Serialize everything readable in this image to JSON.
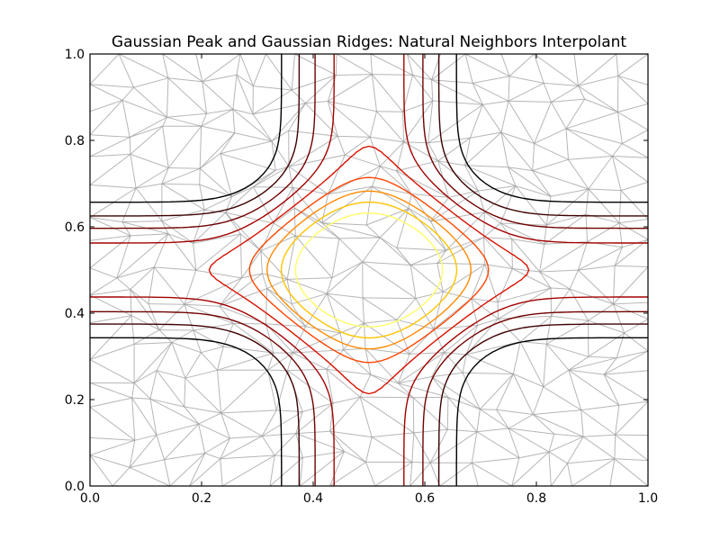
{
  "chart_data": {
    "type": "contour",
    "title": "Gaussian Peak and Gaussian Ridges: Natural Neighbors Interpolant",
    "xlabel": "",
    "ylabel": "",
    "xlim": [
      0.0,
      1.0
    ],
    "ylim": [
      0.0,
      1.0
    ],
    "x_ticks": [
      "0.0",
      "0.2",
      "0.4",
      "0.6",
      "0.8",
      "1.0"
    ],
    "y_ticks": [
      "0.0",
      "0.2",
      "0.4",
      "0.6",
      "0.8",
      "1.0"
    ],
    "peak_center": [
      0.5,
      0.5
    ],
    "colormap": "hot",
    "contour_levels": [
      {
        "level": 1,
        "color": "#000000"
      },
      {
        "level": 2,
        "color": "#3d0000"
      },
      {
        "level": 3,
        "color": "#700000"
      },
      {
        "level": 4,
        "color": "#a30000"
      },
      {
        "level": 5,
        "color": "#d71000"
      },
      {
        "level": 6,
        "color": "#ff4500"
      },
      {
        "level": 7,
        "color": "#ff8a00"
      },
      {
        "level": 8,
        "color": "#ffc400"
      },
      {
        "level": 9,
        "color": "#ffff66"
      }
    ],
    "triangulation_mesh": "shown",
    "mesh_color": "#9e9e9e",
    "grid": false,
    "legend": "none"
  }
}
